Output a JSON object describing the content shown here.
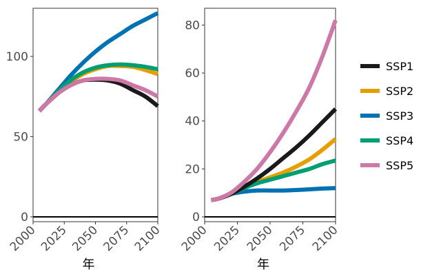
{
  "chart_data": [
    {
      "type": "line",
      "title": "",
      "xlabel": "年",
      "ylabel": "",
      "xlim": [
        2000,
        2100
      ],
      "ylim": [
        -3,
        130
      ],
      "x_ticks": [
        "2000",
        "2025",
        "2050",
        "2075",
        "2100"
      ],
      "y_ticks": [
        "0",
        "50",
        "100"
      ],
      "x": [
        2005,
        2010,
        2020,
        2030,
        2040,
        2050,
        2060,
        2070,
        2080,
        2090,
        2100
      ],
      "series": [
        {
          "name": "SSP1",
          "color": "#1a1a1a",
          "values": [
            66,
            70,
            77,
            82,
            85,
            85.5,
            85,
            83,
            79,
            75,
            69
          ]
        },
        {
          "name": "SSP2",
          "color": "#E69F00",
          "values": [
            66,
            70,
            77,
            84,
            89,
            92,
            94,
            94,
            93.5,
            91.5,
            89
          ]
        },
        {
          "name": "SSP3",
          "color": "#0072B2",
          "values": [
            66,
            70,
            79,
            88,
            96,
            103,
            109,
            114,
            119,
            123,
            127
          ]
        },
        {
          "name": "SSP4",
          "color": "#009E73",
          "values": [
            66,
            70,
            78,
            85,
            90,
            93,
            94.5,
            95,
            94.5,
            93.5,
            92
          ]
        },
        {
          "name": "SSP5",
          "color": "#CC79A7",
          "values": [
            66,
            70,
            77,
            82,
            85,
            86,
            86,
            85,
            82,
            79,
            75
          ]
        }
      ]
    },
    {
      "type": "line",
      "title": "",
      "xlabel": "年",
      "ylabel": "",
      "xlim": [
        2000,
        2100
      ],
      "ylim": [
        -2,
        87
      ],
      "x_ticks": [
        "2000",
        "2025",
        "2050",
        "2075",
        "2100"
      ],
      "y_ticks": [
        "0",
        "20",
        "40",
        "60",
        "80"
      ],
      "x": [
        2005,
        2010,
        2020,
        2030,
        2040,
        2050,
        2060,
        2070,
        2080,
        2090,
        2100
      ],
      "series": [
        {
          "name": "SSP1",
          "color": "#1a1a1a",
          "values": [
            7,
            7.5,
            9.5,
            12.5,
            16,
            20,
            24.5,
            29,
            34,
            39.5,
            45
          ]
        },
        {
          "name": "SSP2",
          "color": "#E69F00",
          "values": [
            7,
            7.5,
            9.5,
            12,
            14.5,
            16.5,
            18.5,
            21,
            24,
            28,
            32.5
          ]
        },
        {
          "name": "SSP3",
          "color": "#0072B2",
          "values": [
            7,
            7.5,
            9.5,
            10.5,
            11,
            11,
            11,
            11.2,
            11.5,
            11.8,
            12
          ]
        },
        {
          "name": "SSP4",
          "color": "#009E73",
          "values": [
            7,
            7.5,
            9.5,
            12,
            14,
            15.5,
            17,
            18.5,
            20,
            22,
            23.5
          ]
        },
        {
          "name": "SSP5",
          "color": "#CC79A7",
          "values": [
            7,
            7.5,
            10,
            14.5,
            20,
            27,
            35,
            44,
            54,
            67,
            82
          ]
        }
      ]
    }
  ],
  "legend": {
    "placement": "right",
    "items": [
      {
        "label": "SSP1",
        "color": "#1a1a1a"
      },
      {
        "label": "SSP2",
        "color": "#E69F00"
      },
      {
        "label": "SSP3",
        "color": "#0072B2"
      },
      {
        "label": "SSP4",
        "color": "#009E73"
      },
      {
        "label": "SSP5",
        "color": "#CC79A7"
      }
    ]
  }
}
